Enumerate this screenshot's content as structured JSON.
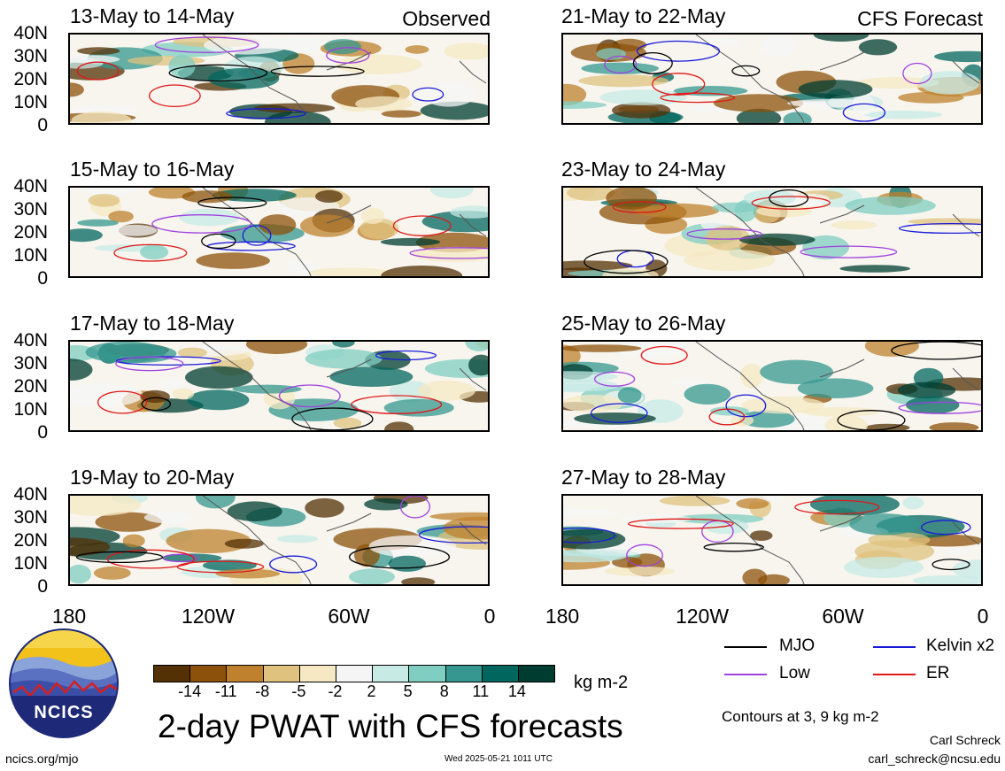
{
  "panels_left": [
    {
      "title": "13-May to 14-May",
      "tag": "Observed"
    },
    {
      "title": "15-May to 16-May",
      "tag": ""
    },
    {
      "title": "17-May to 18-May",
      "tag": ""
    },
    {
      "title": "19-May to 20-May",
      "tag": ""
    }
  ],
  "panels_right": [
    {
      "title": "21-May to 22-May",
      "tag": "CFS Forecast"
    },
    {
      "title": "23-May to 24-May",
      "tag": ""
    },
    {
      "title": "25-May to 26-May",
      "tag": ""
    },
    {
      "title": "27-May to 28-May",
      "tag": ""
    }
  ],
  "y_ticks": [
    "40N",
    "30N",
    "20N",
    "10N",
    "0"
  ],
  "x_ticks": [
    "180",
    "120W",
    "60W",
    "0"
  ],
  "colorbar": {
    "labels": [
      "-14",
      "-11",
      "-8",
      "-5",
      "-2",
      "2",
      "5",
      "8",
      "11",
      "14"
    ],
    "colors": [
      "#543005",
      "#8c510a",
      "#bf812d",
      "#dfc27d",
      "#f6e8c3",
      "#f5f5f5",
      "#c7eae5",
      "#80cdc1",
      "#35978f",
      "#01665e",
      "#003c30"
    ],
    "units": "kg m-2"
  },
  "legend": {
    "items": [
      {
        "label": "MJO",
        "color": "#000000"
      },
      {
        "label": "Kelvin x2",
        "color": "#1a1adb"
      },
      {
        "label": "Low",
        "color": "#a040e0"
      },
      {
        "label": "ER",
        "color": "#e01818"
      }
    ],
    "note": "Contours at 3, 9 kg m-2"
  },
  "logo_text": "NCICS",
  "main_title": "2-day PWAT with CFS forecasts",
  "footer": {
    "url": "ncics.org/mjo",
    "timestamp": "Wed 2025-05-21 1011 UTC",
    "author": "Carl Schreck",
    "email": "carl_schreck@ncsu.edu"
  }
}
